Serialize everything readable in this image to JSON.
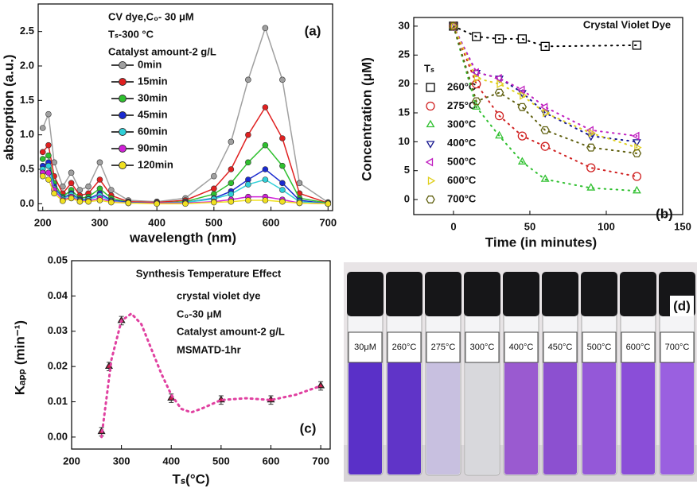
{
  "chart_data": [
    {
      "type": "line",
      "panel": "(a)",
      "x_label": "wavelength (nm)",
      "y_label": "absorption (a.u.)",
      "annotations": [
        "CV dye,C₀- 30 μM",
        "Tₛ-300 °C",
        "Catalyst amount-2 g/L"
      ],
      "x": [
        200,
        210,
        220,
        235,
        250,
        265,
        280,
        300,
        320,
        350,
        400,
        450,
        500,
        530,
        560,
        590,
        620,
        650,
        700
      ],
      "series": [
        {
          "name": "0min",
          "color": "#a0a0a0",
          "values": [
            1.1,
            1.3,
            0.6,
            0.25,
            0.45,
            0.2,
            0.25,
            0.6,
            0.2,
            0.05,
            0.03,
            0.08,
            0.4,
            0.9,
            1.8,
            2.55,
            1.8,
            0.3,
            0.02
          ]
        },
        {
          "name": "15min",
          "color": "#e02020",
          "values": [
            0.75,
            0.85,
            0.4,
            0.15,
            0.3,
            0.12,
            0.15,
            0.35,
            0.12,
            0.03,
            0.02,
            0.05,
            0.22,
            0.5,
            1.0,
            1.4,
            0.95,
            0.15,
            0.01
          ]
        },
        {
          "name": "30min",
          "color": "#2ec02e",
          "values": [
            0.65,
            0.7,
            0.3,
            0.1,
            0.2,
            0.08,
            0.1,
            0.22,
            0.08,
            0.02,
            0.01,
            0.03,
            0.14,
            0.3,
            0.6,
            0.85,
            0.55,
            0.08,
            0.01
          ]
        },
        {
          "name": "45min",
          "color": "#1a2ad0",
          "values": [
            0.55,
            0.6,
            0.25,
            0.08,
            0.15,
            0.06,
            0.07,
            0.15,
            0.05,
            0.02,
            0.01,
            0.02,
            0.08,
            0.18,
            0.35,
            0.5,
            0.3,
            0.05,
            0
          ]
        },
        {
          "name": "60min",
          "color": "#30d0d8",
          "values": [
            0.5,
            0.55,
            0.22,
            0.07,
            0.13,
            0.05,
            0.06,
            0.12,
            0.04,
            0.01,
            0.01,
            0.02,
            0.07,
            0.14,
            0.28,
            0.35,
            0.2,
            0.03,
            0
          ]
        },
        {
          "name": "90min",
          "color": "#d020d8",
          "values": [
            0.45,
            0.45,
            0.2,
            0.05,
            0.1,
            0.04,
            0.04,
            0.08,
            0.03,
            0.01,
            0.01,
            0.01,
            0.03,
            0.06,
            0.1,
            0.1,
            0.06,
            0.01,
            0
          ]
        },
        {
          "name": "120min",
          "color": "#f0e020",
          "values": [
            0.4,
            0.35,
            0.15,
            0.04,
            0.08,
            0.03,
            0.03,
            0.05,
            0.02,
            0.01,
            0,
            0,
            0.02,
            0.03,
            0.05,
            0.05,
            0.03,
            0.01,
            0
          ]
        }
      ],
      "xlim": [
        192,
        708
      ],
      "xticks": [
        200,
        300,
        400,
        500,
        600,
        700
      ],
      "ylim": [
        -0.1,
        2.9
      ],
      "yticks": [
        {
          "value": 0,
          "label": "0.0"
        },
        0.5,
        {
          "value": 1,
          "label": "1.0"
        },
        1.5,
        {
          "value": 2,
          "label": "2.0"
        },
        2.5
      ]
    },
    {
      "type": "scatter",
      "panel": "(b)",
      "title": "Crystal Violet Dye",
      "legend_title": "Tₛ",
      "x_label": "Time (in minutes)",
      "y_label": "Concentration (μM)",
      "x": [
        0,
        15,
        30,
        45,
        60,
        90,
        120
      ],
      "series": [
        {
          "name": "260°C",
          "color": "#000000",
          "marker": "square",
          "values": [
            30,
            28.2,
            27.8,
            27.8,
            26.5,
            null,
            26.7
          ]
        },
        {
          "name": "275°C",
          "color": "#d02020",
          "marker": "circle",
          "values": [
            30,
            20,
            14.5,
            11,
            9.2,
            5.5,
            4
          ]
        },
        {
          "name": "300°C",
          "color": "#30c030",
          "marker": "triangle",
          "values": [
            30,
            16,
            11,
            6.5,
            3.5,
            2,
            1.5
          ]
        },
        {
          "name": "400°C",
          "color": "#1a1a90",
          "marker": "triangle-down",
          "values": [
            30,
            22,
            21,
            18.5,
            15,
            11,
            10
          ]
        },
        {
          "name": "500°C",
          "color": "#c020c0",
          "marker": "triangle-left",
          "values": [
            30,
            22,
            21,
            19,
            16,
            12,
            11
          ]
        },
        {
          "name": "600°C",
          "color": "#e0d020",
          "marker": "triangle-right",
          "values": [
            30,
            21,
            20,
            18,
            15,
            11.5,
            9
          ]
        },
        {
          "name": "700°C",
          "color": "#606010",
          "marker": "hexagon",
          "values": [
            30,
            17,
            18.5,
            16,
            12,
            9,
            8
          ]
        }
      ],
      "xlim": [
        -26,
        150
      ],
      "xticks": [
        0,
        50,
        100,
        150
      ],
      "ylim": [
        -2.6,
        31.5
      ],
      "yticks": [
        0,
        5,
        10,
        15,
        20,
        25,
        30
      ]
    },
    {
      "type": "errorbar",
      "panel": "(c)",
      "title": "Synthesis Temperature Effect",
      "annotations": [
        "crystal violet dye",
        "C₀-30 μM",
        "Catalyst amount-2 g/L",
        "MSMATD-1hr"
      ],
      "x_label": "Tₛ(°C)",
      "y_label": "Kₐₚₚ (min⁻¹)",
      "series": [
        {
          "kind": "points",
          "color": "#d02050",
          "x": [
            260,
            275,
            300,
            400,
            500,
            600,
            700
          ],
          "values": [
            0.0015,
            0.02,
            0.033,
            0.011,
            0.0105,
            0.0105,
            0.0145
          ],
          "errors": [
            0.0012,
            0.0012,
            0.0012,
            0.0012,
            0.0012,
            0.0012,
            0.0012
          ]
        },
        {
          "kind": "fit",
          "color": "#e040a0",
          "line_style": "dotted",
          "x": [
            260,
            280,
            300,
            320,
            340,
            360,
            380,
            400,
            420,
            440,
            460,
            500,
            550,
            600,
            650,
            700
          ],
          "values": [
            0,
            0.022,
            0.033,
            0.035,
            0.032,
            0.025,
            0.018,
            0.012,
            0.008,
            0.007,
            0.008,
            0.0105,
            0.011,
            0.0105,
            0.012,
            0.0145
          ]
        }
      ],
      "xlim": [
        200,
        719
      ],
      "xticks": [
        200,
        300,
        400,
        500,
        600,
        700
      ],
      "ylim": [
        -0.0034,
        0.05
      ],
      "yticks": [
        {
          "value": 0,
          "label": "0.00"
        },
        {
          "value": 0.01,
          "label": "0.01"
        },
        {
          "value": 0.02,
          "label": "0.02"
        },
        {
          "value": 0.03,
          "label": "0.03"
        },
        {
          "value": 0.04,
          "label": "0.04"
        },
        {
          "value": 0.05,
          "label": "0.05"
        }
      ]
    }
  ],
  "photo": {
    "panel": "(d)",
    "vials": [
      {
        "label": "30μM",
        "label_color": "#000000",
        "liquid": "#5a30c8"
      },
      {
        "label": "260°C",
        "label_color": "#000000",
        "liquid": "#6034c8"
      },
      {
        "label": "275°C",
        "label_color": "#d01010",
        "liquid": "#c8c0e0"
      },
      {
        "label": "300°C",
        "label_color": "#d01010",
        "liquid": "#d8d8dc"
      },
      {
        "label": "400°C",
        "label_color": "#000000",
        "liquid": "#9a5ad0"
      },
      {
        "label": "450°C",
        "label_color": "#000000",
        "liquid": "#8c50d0"
      },
      {
        "label": "500°C",
        "label_color": "#000000",
        "liquid": "#9458d8"
      },
      {
        "label": "600°C",
        "label_color": "#000000",
        "liquid": "#8a4ed8"
      },
      {
        "label": "700°C",
        "label_color": "#000000",
        "liquid": "#9a60e0"
      }
    ]
  }
}
